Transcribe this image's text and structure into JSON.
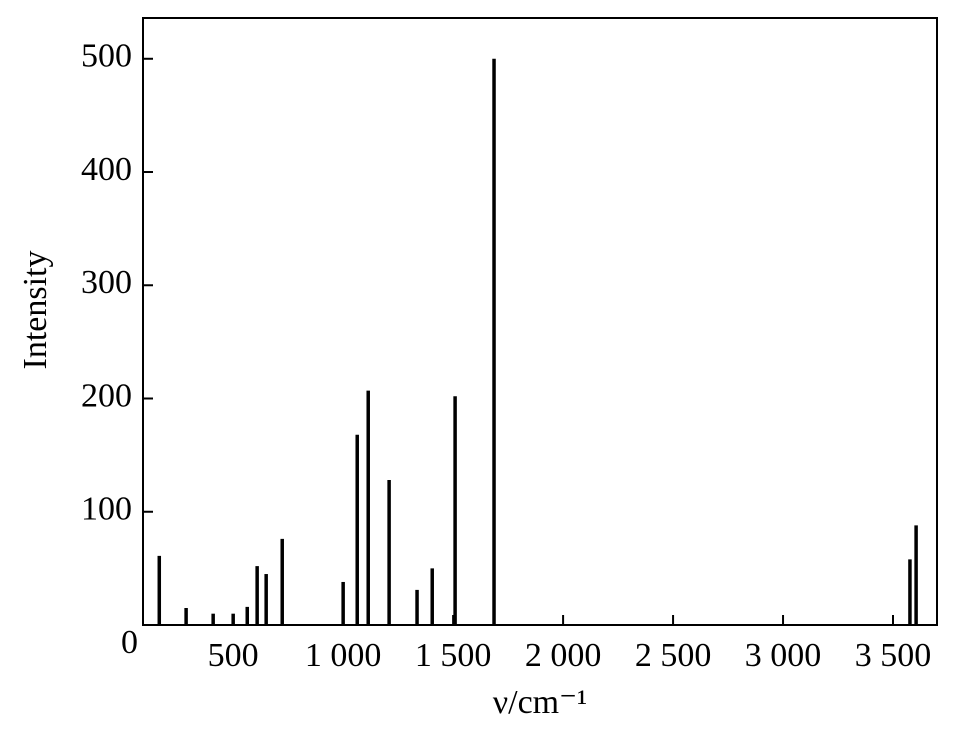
{
  "chart_data": {
    "type": "stick",
    "x_label": "ν/cm⁻¹",
    "y_label": "Intensity",
    "x": [
      164,
      286,
      409,
      500,
      564,
      609,
      650,
      723,
      1000,
      1064,
      1114,
      1209,
      1336,
      1405,
      1509,
      1686,
      3577,
      3605
    ],
    "values": [
      61,
      15,
      10,
      10,
      16,
      52,
      45,
      76,
      38,
      168,
      207,
      128,
      31,
      50,
      202,
      500,
      58,
      88
    ],
    "color": "#000000",
    "xlim": [
      90,
      3700
    ],
    "xticks": [
      500,
      {
        "value": 1000,
        "label": "1 000"
      },
      {
        "value": 1500,
        "label": "1 500"
      },
      {
        "value": 2000,
        "label": "2 000"
      },
      {
        "value": 2500,
        "label": "2 500"
      },
      {
        "value": 3000,
        "label": "3 000"
      },
      {
        "value": 3500,
        "label": "3 500"
      }
    ],
    "ylim": [
      0,
      536
    ],
    "yticks": [
      0,
      100,
      200,
      300,
      400,
      500
    ],
    "grid": false
  }
}
